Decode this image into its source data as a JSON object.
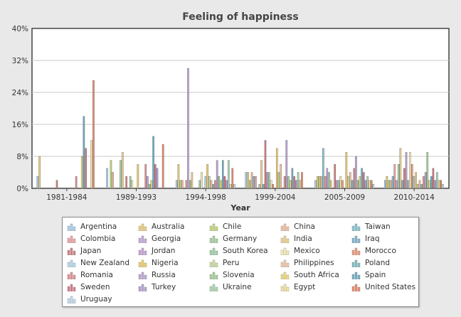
{
  "chart_data": {
    "type": "bar",
    "title": "Feeling of happiness",
    "xlabel": "Year",
    "ylabel": "",
    "ylim": [
      0,
      40
    ],
    "y_ticks": [
      "0%",
      "8%",
      "16%",
      "24%",
      "32%",
      "40%"
    ],
    "y_tick_values": [
      0,
      8,
      16,
      24,
      32,
      40
    ],
    "grid": true,
    "legend_position": "bottom",
    "categories": [
      "1981-1984",
      "1989-1993",
      "1994-1998",
      "1999-2004",
      "2005-2009",
      "2010-2014"
    ],
    "series": [
      {
        "name": "Argentina",
        "color": "#aad4f5",
        "values": [
          3,
          5,
          2,
          4,
          2,
          2
        ]
      },
      {
        "name": "Australia",
        "color": "#f5d27a",
        "values": [
          8,
          null,
          6,
          4,
          3,
          3
        ]
      },
      {
        "name": "Chile",
        "color": "#c7dc7a",
        "values": [
          null,
          7,
          2,
          2,
          3,
          2
        ]
      },
      {
        "name": "China",
        "color": "#f7c4a0",
        "values": [
          null,
          4,
          2,
          4,
          3,
          2
        ]
      },
      {
        "name": "Taiwan",
        "color": "#86c7d8",
        "values": [
          null,
          null,
          null,
          3,
          10,
          3
        ]
      },
      {
        "name": "Colombia",
        "color": "#f4a3a3",
        "values": [
          null,
          null,
          2,
          3,
          3,
          6
        ]
      },
      {
        "name": "Georgia",
        "color": "#caa6e0",
        "values": [
          null,
          null,
          30,
          null,
          5,
          2
        ]
      },
      {
        "name": "Germany",
        "color": "#a8d4a0",
        "values": [
          null,
          7,
          2,
          1,
          4,
          6
        ]
      },
      {
        "name": "India",
        "color": "#f5d58a",
        "values": [
          null,
          9,
          4,
          7,
          2,
          10
        ]
      },
      {
        "name": "Iraq",
        "color": "#7fb7d6",
        "values": [
          null,
          null,
          null,
          1,
          null,
          2
        ]
      },
      {
        "name": "Japan",
        "color": "#d98080",
        "values": [
          2,
          3,
          null,
          12,
          6,
          5
        ]
      },
      {
        "name": "Jordan",
        "color": "#c9a2dc",
        "values": [
          null,
          null,
          null,
          4,
          2,
          9
        ]
      },
      {
        "name": "South Korea",
        "color": "#a3d4a8",
        "values": [
          null,
          3,
          2,
          4,
          2,
          2
        ]
      },
      {
        "name": "Mexico",
        "color": "#fff3b8",
        "values": [
          null,
          2,
          4,
          2,
          3,
          9
        ]
      },
      {
        "name": "Morocco",
        "color": "#f59a7a",
        "values": [
          null,
          null,
          null,
          1,
          2,
          6
        ]
      },
      {
        "name": "New Zealand",
        "color": "#b8def5",
        "values": [
          null,
          null,
          3,
          null,
          null,
          3
        ]
      },
      {
        "name": "Nigeria",
        "color": "#f7d16a",
        "values": [
          null,
          6,
          6,
          10,
          9,
          4
        ]
      },
      {
        "name": "Peru",
        "color": "#cfe3a0",
        "values": [
          null,
          null,
          3,
          4,
          3,
          1
        ]
      },
      {
        "name": "Philippines",
        "color": "#f9c9a8",
        "values": [
          null,
          null,
          2,
          6,
          4,
          2
        ]
      },
      {
        "name": "Poland",
        "color": "#7fc1c9",
        "values": [
          null,
          null,
          1,
          null,
          2,
          1
        ]
      },
      {
        "name": "Romania",
        "color": "#e89090",
        "values": [
          3,
          6,
          2,
          3,
          5,
          3
        ]
      },
      {
        "name": "Russia",
        "color": "#bfa8d8",
        "values": [
          null,
          3,
          7,
          12,
          8,
          4
        ]
      },
      {
        "name": "Slovenia",
        "color": "#a8d49c",
        "values": [
          null,
          1,
          3,
          3,
          2,
          9
        ]
      },
      {
        "name": "South Africa",
        "color": "#f3e07a",
        "values": [
          8,
          2,
          2,
          2,
          3,
          2
        ]
      },
      {
        "name": "Spain",
        "color": "#6fb3c8",
        "values": [
          18,
          13,
          7,
          5,
          5,
          3
        ]
      },
      {
        "name": "Sweden",
        "color": "#d97a8a",
        "values": [
          10,
          6,
          3,
          3,
          4,
          5
        ]
      },
      {
        "name": "Turkey",
        "color": "#b7a3d9",
        "values": [
          null,
          5,
          2,
          2,
          2,
          2
        ]
      },
      {
        "name": "Ukraine",
        "color": "#a8dcb4",
        "values": [
          null,
          null,
          7,
          4,
          3,
          4
        ]
      },
      {
        "name": "Egypt",
        "color": "#fdeba0",
        "values": [
          12,
          null,
          1,
          2,
          2,
          2
        ]
      },
      {
        "name": "United States",
        "color": "#ef8a6a",
        "values": [
          27,
          11,
          5,
          4,
          2,
          2
        ]
      },
      {
        "name": "Uruguay",
        "color": "#c3e0f7",
        "values": [
          null,
          null,
          1,
          null,
          1,
          1
        ]
      }
    ]
  }
}
